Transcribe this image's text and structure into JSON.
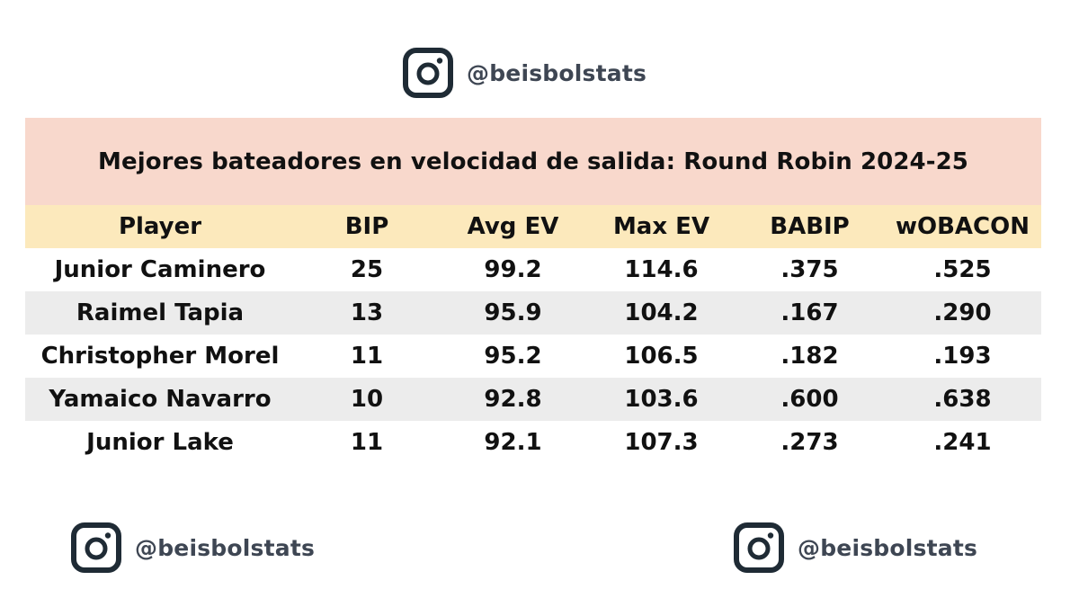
{
  "brand": {
    "top_handle": "@beisbolstats",
    "bottom_left_handle": "@beisbolstats",
    "bottom_right_handle": "@beisbolstats",
    "icon": "instagram-icon"
  },
  "table": {
    "title": "Mejores bateadores en velocidad de salida: Round Robin 2024-25",
    "headers": [
      "Player",
      "BIP",
      "Avg EV",
      "Max EV",
      "BABIP",
      "wOBACON"
    ],
    "rows": [
      [
        "Junior Caminero",
        "25",
        "99.2",
        "114.6",
        ".375",
        ".525"
      ],
      [
        "Raimel Tapia",
        "13",
        "95.9",
        "104.2",
        ".167",
        ".290"
      ],
      [
        "Christopher Morel",
        "11",
        "95.2",
        "106.5",
        ".182",
        ".193"
      ],
      [
        "Yamaico Navarro",
        "10",
        "92.8",
        "103.6",
        ".600",
        ".638"
      ],
      [
        "Junior Lake",
        "11",
        "92.1",
        "107.3",
        ".273",
        ".241"
      ]
    ]
  },
  "colors": {
    "title_bg": "#f8d8cc",
    "header_bg": "#fce9bc",
    "alt_row_bg": "#ececec",
    "icon_color": "#1f2b35",
    "handle_color": "#3e4653"
  }
}
